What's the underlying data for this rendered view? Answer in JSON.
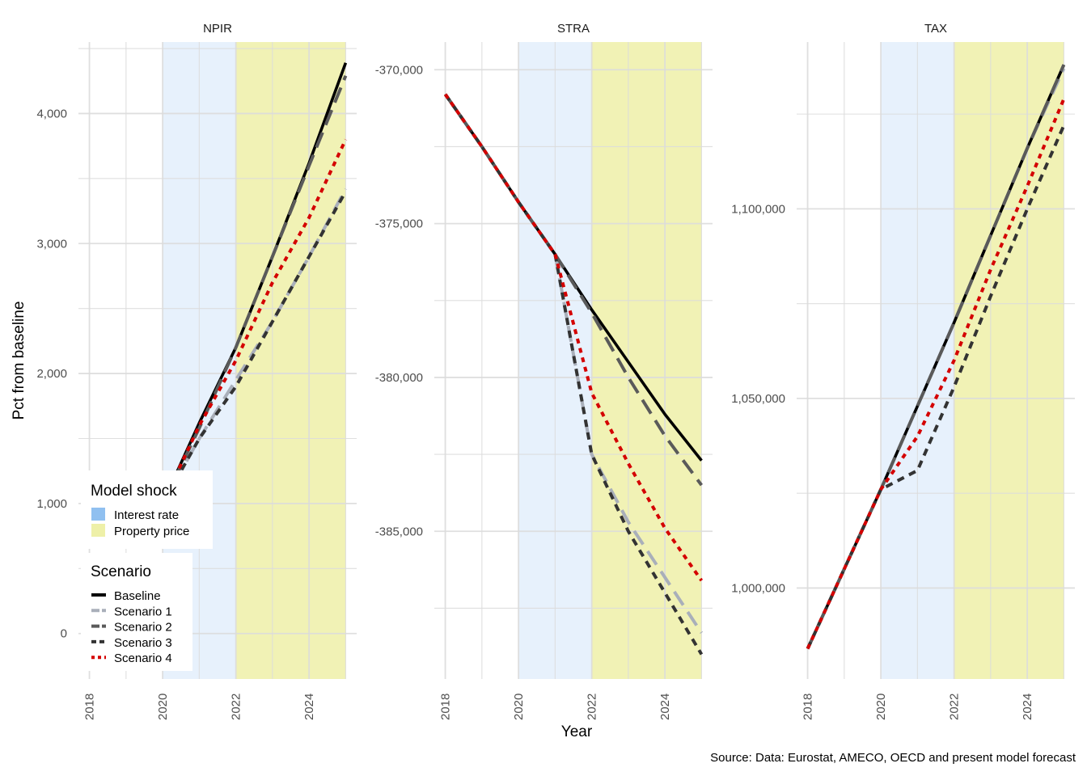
{
  "figure": {
    "ylabel": "Pct from baseline",
    "xlabel": "Year",
    "caption": "Source: Data: Eurostat, AMECO, OECD and present model forecast"
  },
  "legend": {
    "shock_title": "Model shock",
    "shock_items": [
      {
        "label": "Interest rate",
        "color": "#90C0F0"
      },
      {
        "label": "Property price",
        "color": "#EEF0A8"
      }
    ],
    "scenario_title": "Scenario",
    "scenario_items": [
      {
        "label": "Baseline",
        "color": "#000000",
        "dash": "solid"
      },
      {
        "label": "Scenario 1",
        "color": "#A9AFBA",
        "dash": "longdash"
      },
      {
        "label": "Scenario 2",
        "color": "#5A5A5A",
        "dash": "longdash"
      },
      {
        "label": "Scenario 3",
        "color": "#333333",
        "dash": "dashed"
      },
      {
        "label": "Scenario 4",
        "color": "#D40000",
        "dash": "dotted"
      }
    ]
  },
  "chart_data": [
    {
      "type": "line",
      "title": "NPIR",
      "x": [
        2018,
        2019,
        2020,
        2021,
        2022,
        2023,
        2024,
        2025
      ],
      "xlim": [
        2017.7,
        2025.3
      ],
      "xticks": [
        "2018",
        "2020",
        "2022",
        "2024"
      ],
      "ylim": [
        -350,
        4550
      ],
      "yticks": [
        0,
        1000,
        2000,
        3000,
        4000
      ],
      "ytick_labels": [
        "0",
        "1,000",
        "2,000",
        "3,000",
        "4,000"
      ],
      "shock_bands": [
        {
          "label": "Interest rate",
          "from": 2020,
          "to": 2022
        },
        {
          "label": "Property price",
          "from": 2022,
          "to": 2025
        }
      ],
      "series": [
        {
          "name": "Baseline",
          "values": [
            null,
            null,
            1000,
            1620,
            2200,
            2900,
            3620,
            4390
          ]
        },
        {
          "name": "Scenario 1",
          "values": [
            null,
            null,
            1000,
            1500,
            1950,
            2400,
            2900,
            3420
          ]
        },
        {
          "name": "Scenario 2",
          "values": [
            null,
            null,
            1000,
            1580,
            2200,
            2900,
            3600,
            4290
          ]
        },
        {
          "name": "Scenario 3",
          "values": [
            null,
            null,
            1000,
            1500,
            1900,
            2400,
            2900,
            3400
          ]
        },
        {
          "name": "Scenario 4",
          "values": [
            null,
            null,
            1000,
            1600,
            2100,
            2700,
            3200,
            3800
          ]
        }
      ]
    },
    {
      "type": "line",
      "title": "STRA",
      "x": [
        2018,
        2019,
        2020,
        2021,
        2022,
        2023,
        2024,
        2025
      ],
      "xlim": [
        2017.7,
        2025.3
      ],
      "xticks": [
        "2018",
        "2020",
        "2022",
        "2024"
      ],
      "ylim": [
        -389800,
        -369100
      ],
      "yticks": [
        -385000,
        -380000,
        -375000,
        -370000
      ],
      "ytick_labels": [
        "-385,000",
        "-380,000",
        "-375,000",
        "-370,000"
      ],
      "shock_bands": [
        {
          "label": "Interest rate",
          "from": 2020,
          "to": 2022
        },
        {
          "label": "Property price",
          "from": 2022,
          "to": 2025
        }
      ],
      "series": [
        {
          "name": "Baseline",
          "values": [
            -370800,
            -372500,
            -374300,
            -376000,
            -377800,
            -379500,
            -381200,
            -382700
          ]
        },
        {
          "name": "Scenario 1",
          "values": [
            -370800,
            -372500,
            -374300,
            -376000,
            -382500,
            -384700,
            -386500,
            -388300
          ]
        },
        {
          "name": "Scenario 2",
          "values": [
            -370800,
            -372500,
            -374300,
            -376000,
            -377900,
            -380000,
            -381900,
            -383500
          ]
        },
        {
          "name": "Scenario 3",
          "values": [
            -370800,
            -372500,
            -374300,
            -376000,
            -382500,
            -385000,
            -387000,
            -389000
          ]
        },
        {
          "name": "Scenario 4",
          "values": [
            -370800,
            -372500,
            -374300,
            -376000,
            -380500,
            -382800,
            -384900,
            -386600
          ]
        }
      ]
    },
    {
      "type": "line",
      "title": "TAX",
      "x": [
        2018,
        2019,
        2020,
        2021,
        2022,
        2023,
        2024,
        2025
      ],
      "xlim": [
        2017.7,
        2025.3
      ],
      "xticks": [
        "2018",
        "2020",
        "2022",
        "2024"
      ],
      "ylim": [
        976000,
        1144000
      ],
      "yticks": [
        1000000,
        1050000,
        1100000
      ],
      "ytick_labels": [
        "1,000,000",
        "1,050,000",
        "1,100,000"
      ],
      "shock_bands": [
        {
          "label": "Interest rate",
          "from": 2020,
          "to": 2022
        },
        {
          "label": "Property price",
          "from": 2022,
          "to": 2025
        }
      ],
      "series": [
        {
          "name": "Baseline",
          "values": [
            984000,
            1005000,
            1026000,
            1048000,
            1070000,
            1093000,
            1116000,
            1138000
          ]
        },
        {
          "name": "Scenario 1",
          "values": [
            984000,
            1005000,
            1026000,
            1048000,
            1070000,
            1093000,
            1116000,
            1137000
          ]
        },
        {
          "name": "Scenario 2",
          "values": [
            984000,
            1005000,
            1026000,
            1048000,
            1070000,
            1093000,
            1116000,
            1138000
          ]
        },
        {
          "name": "Scenario 3",
          "values": [
            984000,
            1005000,
            1026000,
            1031000,
            1053000,
            1077000,
            1100000,
            1122000
          ]
        },
        {
          "name": "Scenario 4",
          "values": [
            984000,
            1005000,
            1026000,
            1040000,
            1060000,
            1084000,
            1106000,
            1129000
          ]
        }
      ]
    }
  ]
}
